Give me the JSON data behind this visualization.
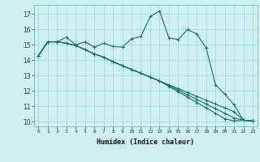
{
  "bg_color": "#cff0f0",
  "grid_color": "#aadddd",
  "line_color": "#1a6e6a",
  "xlabel": "Humidex (Indice chaleur)",
  "ylabel_ticks": [
    10,
    11,
    12,
    13,
    14,
    15,
    16,
    17
  ],
  "xlim": [
    -0.5,
    23.5
  ],
  "ylim": [
    9.7,
    17.6
  ],
  "series": [
    {
      "x": [
        0,
        1,
        2,
        3,
        4,
        5,
        6,
        7,
        8,
        9,
        10,
        11,
        12,
        13,
        14,
        15,
        16,
        17,
        18,
        19,
        20,
        21,
        22,
        23
      ],
      "y": [
        14.3,
        15.2,
        15.2,
        15.5,
        15.0,
        15.2,
        14.85,
        15.1,
        14.9,
        14.85,
        15.4,
        15.55,
        16.85,
        17.2,
        15.45,
        15.35,
        16.0,
        15.7,
        14.8,
        12.4,
        11.8,
        11.1,
        10.1,
        10.05
      ]
    },
    {
      "x": [
        0,
        1,
        2,
        3,
        4,
        5,
        6,
        7,
        8,
        9,
        10,
        11,
        12,
        13,
        14,
        15,
        16,
        17,
        18,
        19,
        20,
        21,
        22,
        23
      ],
      "y": [
        14.3,
        15.2,
        15.2,
        15.1,
        14.95,
        14.7,
        14.4,
        14.2,
        13.9,
        13.65,
        13.4,
        13.15,
        12.9,
        12.65,
        12.4,
        12.15,
        11.9,
        11.65,
        11.4,
        11.15,
        10.9,
        10.65,
        10.1,
        10.05
      ]
    },
    {
      "x": [
        0,
        1,
        2,
        3,
        4,
        5,
        6,
        7,
        8,
        9,
        10,
        11,
        12,
        13,
        14,
        15,
        16,
        17,
        18,
        19,
        20,
        21,
        22,
        23
      ],
      "y": [
        14.3,
        15.2,
        15.2,
        15.1,
        14.95,
        14.7,
        14.4,
        14.2,
        13.9,
        13.65,
        13.4,
        13.15,
        12.9,
        12.65,
        12.35,
        12.05,
        11.75,
        11.45,
        11.15,
        10.85,
        10.55,
        10.25,
        10.1,
        10.05
      ]
    },
    {
      "x": [
        0,
        1,
        2,
        3,
        4,
        5,
        6,
        7,
        8,
        9,
        10,
        11,
        12,
        13,
        14,
        15,
        16,
        17,
        18,
        19,
        20,
        21,
        22,
        23
      ],
      "y": [
        14.3,
        15.2,
        15.2,
        15.1,
        14.95,
        14.7,
        14.4,
        14.2,
        13.9,
        13.65,
        13.4,
        13.15,
        12.9,
        12.65,
        12.3,
        11.95,
        11.6,
        11.25,
        10.9,
        10.55,
        10.2,
        10.05,
        10.1,
        10.05
      ]
    }
  ]
}
